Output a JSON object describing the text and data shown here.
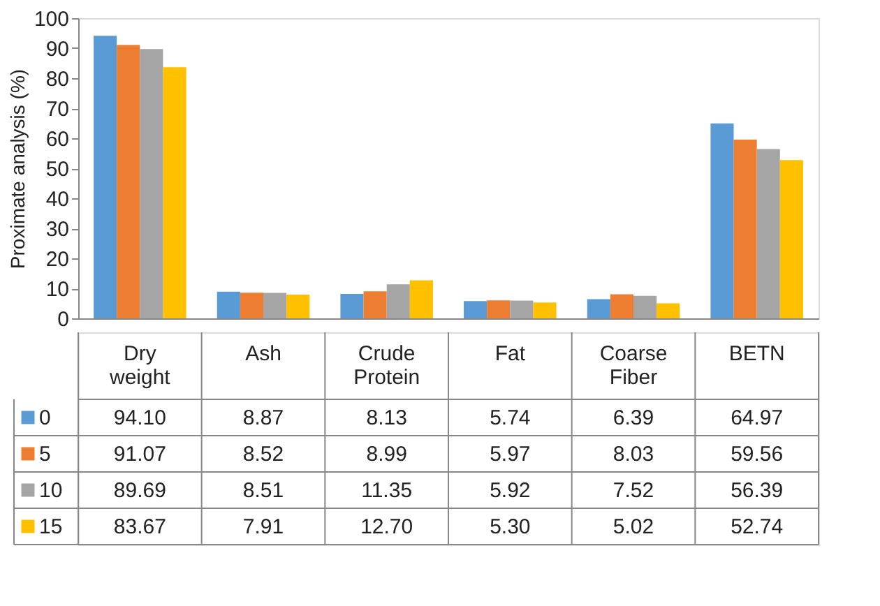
{
  "chart_data": {
    "type": "bar",
    "ylabel": "Proximate analysis (%)",
    "categories": [
      "Dry weight",
      "Ash",
      "Crude Protein",
      "Fat",
      "Coarse Fiber",
      "BETN"
    ],
    "series": [
      {
        "name": "0",
        "color": "#5b9bd5",
        "values": [
          94.1,
          8.87,
          8.13,
          5.74,
          6.39,
          64.97
        ],
        "value_labels": [
          "94.10",
          "8.87",
          "8.13",
          "5.74",
          "6.39",
          "64.97"
        ]
      },
      {
        "name": "5",
        "color": "#ed7d31",
        "values": [
          91.07,
          8.52,
          8.99,
          5.97,
          8.03,
          59.56
        ],
        "value_labels": [
          "91.07",
          "8.52",
          "8.99",
          "5.97",
          "8.03",
          "59.56"
        ]
      },
      {
        "name": "10",
        "color": "#a5a5a5",
        "values": [
          89.69,
          8.51,
          11.35,
          5.92,
          7.52,
          56.39
        ],
        "value_labels": [
          "89.69",
          "8.51",
          "11.35",
          "5.92",
          "7.52",
          "56.39"
        ]
      },
      {
        "name": "15",
        "color": "#ffc000",
        "values": [
          83.67,
          7.91,
          12.7,
          5.3,
          5.02,
          52.74
        ],
        "value_labels": [
          "83.67",
          "7.91",
          "12.70",
          "5.30",
          "5.02",
          "52.74"
        ]
      }
    ],
    "ylim": [
      0,
      100
    ],
    "yticks": [
      0,
      10,
      20,
      30,
      40,
      50,
      60,
      70,
      80,
      90,
      100
    ],
    "grid": false,
    "legend": "bottom"
  }
}
